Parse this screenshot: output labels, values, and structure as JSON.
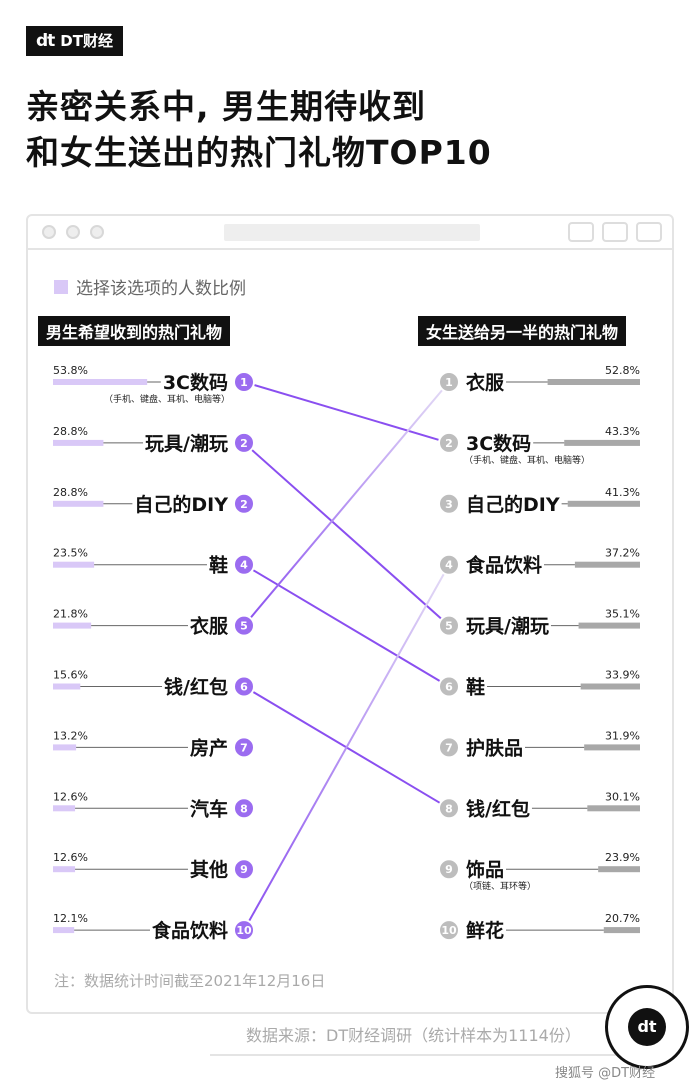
{
  "logo": {
    "text": "DT财经",
    "mark": "dt"
  },
  "title": [
    "亲密关系中, 男生期待收到",
    "和女生送出的热门礼物TOP10"
  ],
  "legend": "选择该选项的人数比例",
  "colors": {
    "left_bar": "#d9c8f7",
    "right_bar": "#a8a8a8",
    "left_badge": "#9b6cf0",
    "right_badge": "#bdbdbd",
    "line": "#8a4ff0"
  },
  "chart_data": [
    {
      "type": "bar",
      "title": "男生希望收到的热门礼物",
      "categories": [
        "3C数码",
        "玩具/潮玩",
        "自己的DIY",
        "鞋",
        "衣服",
        "钱/红包",
        "房产",
        "汽车",
        "其他",
        "食品饮料"
      ],
      "ranks": [
        "1",
        "2",
        "2",
        "4",
        "5",
        "6",
        "7",
        "8",
        "9",
        "10"
      ],
      "values": [
        53.8,
        28.8,
        28.8,
        23.5,
        21.8,
        15.6,
        13.2,
        12.6,
        12.6,
        12.1
      ],
      "value_labels": [
        "53.8%",
        "28.8%",
        "28.8%",
        "23.5%",
        "21.8%",
        "15.6%",
        "13.2%",
        "12.6%",
        "12.6%",
        "12.1%"
      ],
      "sublabels": {
        "0": "（手机、键盘、耳机、电脑等）"
      },
      "unit": "%"
    },
    {
      "type": "bar",
      "title": "女生送给另一半的热门礼物",
      "categories": [
        "衣服",
        "3C数码",
        "自己的DIY",
        "食品饮料",
        "玩具/潮玩",
        "鞋",
        "护肤品",
        "钱/红包",
        "饰品",
        "鲜花"
      ],
      "ranks": [
        "1",
        "2",
        "3",
        "4",
        "5",
        "6",
        "7",
        "8",
        "9",
        "10"
      ],
      "values": [
        52.8,
        43.3,
        41.3,
        37.2,
        35.1,
        33.9,
        31.9,
        30.1,
        23.9,
        20.7
      ],
      "value_labels": [
        "52.8%",
        "43.3%",
        "41.3%",
        "37.2%",
        "35.1%",
        "33.9%",
        "31.9%",
        "30.1%",
        "23.9%",
        "20.7%"
      ],
      "sublabels": {
        "1": "（手机、键盘、耳机、电脑等）",
        "8": "（项链、耳环等）"
      },
      "unit": "%"
    }
  ],
  "note": "注：数据统计时间截至2021年12月16日",
  "source": "数据来源：DT财经调研（统计样本为1114份）",
  "watermark": "搜狐号 @DT财经"
}
